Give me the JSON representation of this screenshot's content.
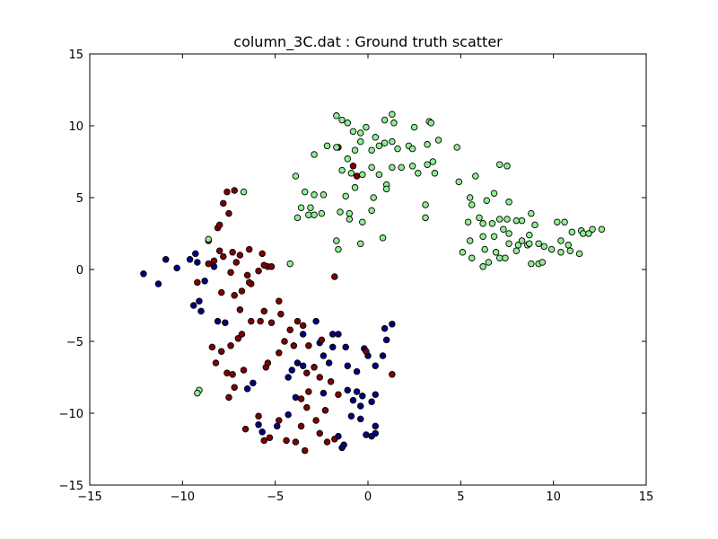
{
  "chart_data": {
    "type": "scatter",
    "title": "column_3C.dat : Ground truth scatter",
    "xlabel": "",
    "ylabel": "",
    "xlim": [
      -15,
      15
    ],
    "ylim": [
      -15,
      15
    ],
    "xticks": [
      -15,
      -10,
      -5,
      0,
      5,
      10,
      15
    ],
    "yticks": [
      -15,
      -10,
      -5,
      0,
      5,
      10,
      15
    ],
    "xtick_labels": [
      "−15",
      "−10",
      "−5",
      "0",
      "5",
      "10",
      "15"
    ],
    "ytick_labels": [
      "−15",
      "−10",
      "−5",
      "0",
      "5",
      "10",
      "15"
    ],
    "grid": false,
    "legend": "none",
    "series": [
      {
        "color": "#000080",
        "points": [
          [
            -12.1,
            -0.3
          ],
          [
            -11.3,
            -1.0
          ],
          [
            -10.9,
            0.7
          ],
          [
            -10.3,
            0.1
          ],
          [
            -9.6,
            0.7
          ],
          [
            -9.3,
            1.1
          ],
          [
            -9.2,
            0.5
          ],
          [
            -8.8,
            -0.8
          ],
          [
            -9.1,
            -2.2
          ],
          [
            -9.4,
            -2.5
          ],
          [
            -9.0,
            -2.9
          ],
          [
            -8.1,
            -3.6
          ],
          [
            -7.7,
            -3.7
          ],
          [
            -8.3,
            0.2
          ],
          [
            -1.6,
            -4.5
          ],
          [
            -1.9,
            -5.4
          ],
          [
            -2.6,
            -5.1
          ],
          [
            -1.2,
            -5.4
          ],
          [
            -2.4,
            -6.0
          ],
          [
            -2.1,
            -6.5
          ],
          [
            -3.5,
            -4.5
          ],
          [
            -2.8,
            -3.6
          ],
          [
            -1.9,
            -4.5
          ],
          [
            -4.1,
            -7.0
          ],
          [
            -4.3,
            -7.5
          ],
          [
            -3.8,
            -6.5
          ],
          [
            -3.5,
            -6.7
          ],
          [
            -2.4,
            -8.6
          ],
          [
            -1.1,
            -8.4
          ],
          [
            -0.6,
            -8.5
          ],
          [
            -0.3,
            -8.8
          ],
          [
            0.4,
            -8.7
          ],
          [
            -0.8,
            -9.1
          ],
          [
            -0.4,
            -9.5
          ],
          [
            0.2,
            -9.2
          ],
          [
            -0.9,
            -10.2
          ],
          [
            -0.4,
            -10.4
          ],
          [
            0.4,
            -10.9
          ],
          [
            0.4,
            -11.4
          ],
          [
            -0.1,
            -11.5
          ],
          [
            0.2,
            -11.6
          ],
          [
            -1.3,
            -12.2
          ],
          [
            -1.4,
            -12.4
          ],
          [
            -4.3,
            -10.1
          ],
          [
            -4.9,
            -10.9
          ],
          [
            -5.7,
            -11.3
          ],
          [
            -5.9,
            -10.8
          ],
          [
            -3.9,
            -8.9
          ],
          [
            -6.2,
            -7.9
          ],
          [
            -6.5,
            -8.3
          ],
          [
            -1.6,
            -11.6
          ],
          [
            0.9,
            -4.1
          ],
          [
            1.3,
            -3.8
          ],
          [
            1.0,
            -4.9
          ],
          [
            0.8,
            -6.0
          ],
          [
            0.4,
            -6.7
          ],
          [
            0.0,
            -6.0
          ],
          [
            -0.2,
            -5.5
          ],
          [
            -1.1,
            -6.7
          ],
          [
            -0.6,
            -7.1
          ]
        ]
      },
      {
        "color": "#800000",
        "points": [
          [
            -9.2,
            -0.9
          ],
          [
            -8.6,
            0.4
          ],
          [
            -8.3,
            0.6
          ],
          [
            -8.0,
            1.3
          ],
          [
            -7.8,
            0.9
          ],
          [
            -7.4,
            -0.2
          ],
          [
            -7.1,
            0.5
          ],
          [
            -6.9,
            1.0
          ],
          [
            -6.5,
            -0.4
          ],
          [
            -6.3,
            -1.0
          ],
          [
            -5.9,
            -0.1
          ],
          [
            -5.4,
            0.2
          ],
          [
            -5.6,
            0.3
          ],
          [
            -5.2,
            0.2
          ],
          [
            -5.7,
            1.1
          ],
          [
            -6.4,
            1.4
          ],
          [
            -7.3,
            1.2
          ],
          [
            -8.1,
            2.9
          ],
          [
            -8.0,
            3.1
          ],
          [
            -7.5,
            3.9
          ],
          [
            -7.8,
            4.6
          ],
          [
            -7.2,
            5.5
          ],
          [
            -7.6,
            5.4
          ],
          [
            -6.8,
            -1.5
          ],
          [
            -7.2,
            -1.8
          ],
          [
            -7.9,
            -1.6
          ],
          [
            -6.9,
            -2.8
          ],
          [
            -6.3,
            -3.6
          ],
          [
            -5.8,
            -3.6
          ],
          [
            -5.2,
            -3.7
          ],
          [
            -5.6,
            -2.9
          ],
          [
            -4.8,
            -2.2
          ],
          [
            -4.7,
            -3.1
          ],
          [
            -4.2,
            -4.2
          ],
          [
            -3.8,
            -3.6
          ],
          [
            -3.5,
            -3.9
          ],
          [
            -4.5,
            -5.0
          ],
          [
            -4.0,
            -5.3
          ],
          [
            -3.2,
            -5.3
          ],
          [
            -2.5,
            -4.9
          ],
          [
            -8.4,
            -5.4
          ],
          [
            -7.9,
            -5.7
          ],
          [
            -7.4,
            -5.3
          ],
          [
            -7.0,
            -4.8
          ],
          [
            -6.8,
            -4.5
          ],
          [
            -8.2,
            -6.5
          ],
          [
            -7.6,
            -7.2
          ],
          [
            -7.3,
            -7.3
          ],
          [
            -6.7,
            -7.0
          ],
          [
            -5.5,
            -6.8
          ],
          [
            -5.4,
            -6.5
          ],
          [
            -4.8,
            -5.8
          ],
          [
            -3.3,
            -7.2
          ],
          [
            -2.9,
            -6.8
          ],
          [
            -2.6,
            -7.5
          ],
          [
            -2.0,
            -7.8
          ],
          [
            -1.6,
            -8.7
          ],
          [
            -3.2,
            -8.5
          ],
          [
            -3.6,
            -9.0
          ],
          [
            -3.3,
            -9.6
          ],
          [
            -2.3,
            -9.8
          ],
          [
            -2.8,
            -10.5
          ],
          [
            -3.6,
            -10.9
          ],
          [
            -4.8,
            -10.5
          ],
          [
            -5.9,
            -10.2
          ],
          [
            -6.6,
            -11.1
          ],
          [
            -5.3,
            -11.7
          ],
          [
            -5.6,
            -11.9
          ],
          [
            -4.4,
            -11.9
          ],
          [
            -3.9,
            -12.0
          ],
          [
            -3.4,
            -12.6
          ],
          [
            -2.2,
            -12.0
          ],
          [
            -2.6,
            -11.4
          ],
          [
            -1.8,
            -11.8
          ],
          [
            -7.5,
            -8.9
          ],
          [
            -7.2,
            -8.2
          ],
          [
            -1.8,
            -0.5
          ],
          [
            -1.6,
            8.5
          ],
          [
            -0.8,
            7.2
          ],
          [
            -0.6,
            6.5
          ],
          [
            -0.1,
            -5.7
          ],
          [
            1.3,
            -7.3
          ],
          [
            -8.6,
            2.0
          ],
          [
            -6.4,
            -0.9
          ]
        ]
      },
      {
        "color": "#90ee90",
        "points": [
          [
            -1.7,
            10.7
          ],
          [
            -1.4,
            10.4
          ],
          [
            -1.1,
            10.2
          ],
          [
            -0.8,
            9.6
          ],
          [
            -0.4,
            9.5
          ],
          [
            -0.1,
            9.9
          ],
          [
            0.4,
            9.2
          ],
          [
            0.9,
            10.4
          ],
          [
            1.3,
            10.8
          ],
          [
            1.4,
            10.2
          ],
          [
            2.5,
            9.9
          ],
          [
            3.3,
            10.3
          ],
          [
            3.4,
            10.2
          ],
          [
            -2.9,
            8.0
          ],
          [
            -2.2,
            8.6
          ],
          [
            -1.7,
            8.5
          ],
          [
            -1.1,
            7.7
          ],
          [
            -0.7,
            8.3
          ],
          [
            -0.4,
            8.9
          ],
          [
            0.2,
            8.3
          ],
          [
            0.6,
            8.6
          ],
          [
            0.9,
            8.8
          ],
          [
            1.3,
            8.9
          ],
          [
            1.6,
            8.4
          ],
          [
            2.2,
            8.6
          ],
          [
            2.4,
            8.4
          ],
          [
            3.2,
            8.7
          ],
          [
            3.8,
            9.0
          ],
          [
            4.8,
            8.5
          ],
          [
            -1.4,
            6.9
          ],
          [
            -0.9,
            6.7
          ],
          [
            -0.3,
            6.6
          ],
          [
            0.2,
            7.1
          ],
          [
            0.6,
            6.6
          ],
          [
            1.0,
            5.9
          ],
          [
            1.3,
            7.1
          ],
          [
            1.8,
            7.1
          ],
          [
            2.4,
            7.2
          ],
          [
            2.7,
            6.7
          ],
          [
            3.2,
            7.3
          ],
          [
            3.5,
            7.5
          ],
          [
            3.6,
            6.7
          ],
          [
            4.9,
            6.1
          ],
          [
            5.8,
            6.5
          ],
          [
            -3.9,
            6.5
          ],
          [
            -3.4,
            5.4
          ],
          [
            -2.9,
            5.2
          ],
          [
            -2.4,
            5.2
          ],
          [
            -1.2,
            5.1
          ],
          [
            -0.7,
            5.7
          ],
          [
            0.3,
            5.0
          ],
          [
            -3.6,
            4.3
          ],
          [
            -3.1,
            4.3
          ],
          [
            -3.2,
            3.8
          ],
          [
            -2.9,
            3.8
          ],
          [
            -2.5,
            3.9
          ],
          [
            -1.5,
            4.0
          ],
          [
            -1.0,
            3.5
          ],
          [
            -1.0,
            3.9
          ],
          [
            -0.3,
            3.3
          ],
          [
            0.2,
            4.1
          ],
          [
            1.0,
            5.6
          ],
          [
            3.1,
            4.5
          ],
          [
            3.1,
            3.6
          ],
          [
            -3.8,
            3.6
          ],
          [
            -1.7,
            2.0
          ],
          [
            -1.6,
            1.4
          ],
          [
            -0.4,
            1.8
          ],
          [
            0.8,
            2.2
          ],
          [
            7.1,
            7.3
          ],
          [
            7.5,
            7.2
          ],
          [
            5.5,
            5.0
          ],
          [
            6.4,
            4.8
          ],
          [
            6.8,
            5.3
          ],
          [
            7.6,
            4.7
          ],
          [
            5.6,
            4.5
          ],
          [
            6.0,
            3.6
          ],
          [
            5.4,
            3.3
          ],
          [
            6.2,
            3.2
          ],
          [
            6.7,
            3.2
          ],
          [
            7.1,
            3.5
          ],
          [
            7.5,
            3.5
          ],
          [
            8.0,
            3.4
          ],
          [
            8.3,
            3.4
          ],
          [
            8.8,
            3.9
          ],
          [
            9.0,
            3.1
          ],
          [
            8.7,
            2.4
          ],
          [
            10.2,
            3.3
          ],
          [
            10.6,
            3.3
          ],
          [
            11.0,
            2.6
          ],
          [
            11.5,
            2.7
          ],
          [
            12.1,
            2.8
          ],
          [
            12.6,
            2.8
          ],
          [
            7.3,
            2.8
          ],
          [
            7.6,
            2.5
          ],
          [
            8.3,
            2.0
          ],
          [
            8.6,
            1.7
          ],
          [
            9.2,
            1.8
          ],
          [
            10.4,
            2.0
          ],
          [
            10.8,
            1.7
          ],
          [
            11.6,
            2.5
          ],
          [
            11.9,
            2.5
          ],
          [
            6.2,
            2.3
          ],
          [
            5.5,
            2.0
          ],
          [
            6.8,
            2.3
          ],
          [
            6.3,
            1.4
          ],
          [
            6.9,
            1.2
          ],
          [
            7.6,
            1.8
          ],
          [
            8.1,
            1.7
          ],
          [
            8.7,
            1.8
          ],
          [
            9.5,
            1.6
          ],
          [
            9.9,
            1.4
          ],
          [
            10.4,
            1.2
          ],
          [
            10.9,
            1.3
          ],
          [
            11.4,
            1.1
          ],
          [
            5.1,
            1.2
          ],
          [
            5.6,
            0.8
          ],
          [
            6.5,
            0.5
          ],
          [
            7.1,
            0.8
          ],
          [
            7.4,
            0.8
          ],
          [
            8.0,
            1.3
          ],
          [
            8.8,
            0.4
          ],
          [
            9.2,
            0.4
          ],
          [
            9.4,
            0.5
          ],
          [
            6.2,
            0.2
          ],
          [
            -4.2,
            0.4
          ],
          [
            -9.1,
            -8.4
          ],
          [
            -9.2,
            -8.6
          ],
          [
            -8.6,
            2.1
          ],
          [
            -6.7,
            5.4
          ]
        ]
      }
    ]
  }
}
